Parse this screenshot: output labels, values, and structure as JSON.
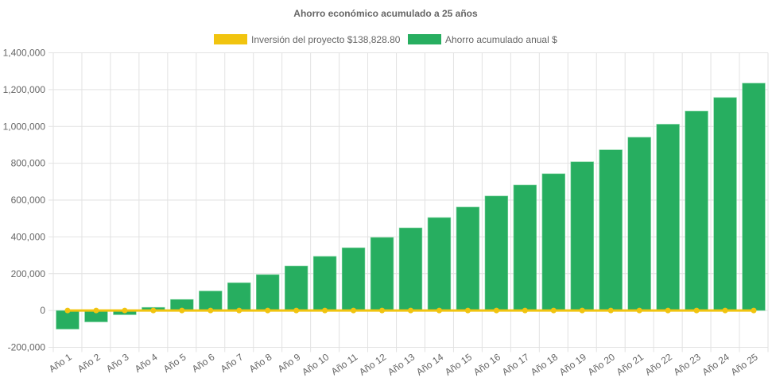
{
  "chart_data": {
    "type": "bar",
    "title": "Ahorro económico acumulado a 25 años",
    "categories": [
      "Año 1",
      "Año 2",
      "Año 3",
      "Año 4",
      "Año 5",
      "Año 6",
      "Año 7",
      "Año 8",
      "Año 9",
      "Año 10",
      "Año 11",
      "Año 12",
      "Año 13",
      "Año 14",
      "Año 15",
      "Año 16",
      "Año 17",
      "Año 18",
      "Año 19",
      "Año 20",
      "Año 21",
      "Año 22",
      "Año 23",
      "Año 24",
      "Año 25"
    ],
    "series": [
      {
        "name": "Inversión del proyecto $138,828.80",
        "type": "line",
        "color": "#f1c40f",
        "values": [
          0,
          0,
          0,
          0,
          0,
          0,
          0,
          0,
          0,
          0,
          0,
          0,
          0,
          0,
          0,
          0,
          0,
          0,
          0,
          0,
          0,
          0,
          0,
          0,
          0
        ]
      },
      {
        "name": "Ahorro acumulado anual $",
        "type": "bar",
        "color": "#27ae60",
        "values": [
          -101000,
          -62000,
          -23000,
          17000,
          60000,
          106000,
          151000,
          195000,
          242000,
          294000,
          341000,
          397000,
          449000,
          505000,
          562000,
          622000,
          682000,
          743000,
          808000,
          873000,
          941000,
          1012000,
          1083000,
          1157000,
          1235000
        ]
      }
    ],
    "ylim": [
      -200000,
      1400000
    ],
    "yticks": [
      "-200,000",
      "0",
      "200,000",
      "400,000",
      "600,000",
      "800,000",
      "1,000,000",
      "1,200,000",
      "1,400,000"
    ],
    "ytick_values": [
      -200000,
      0,
      200000,
      400000,
      600000,
      800000,
      1000000,
      1200000,
      1400000
    ],
    "grid": true,
    "legend_position": "top",
    "xlabel": "",
    "ylabel": ""
  }
}
